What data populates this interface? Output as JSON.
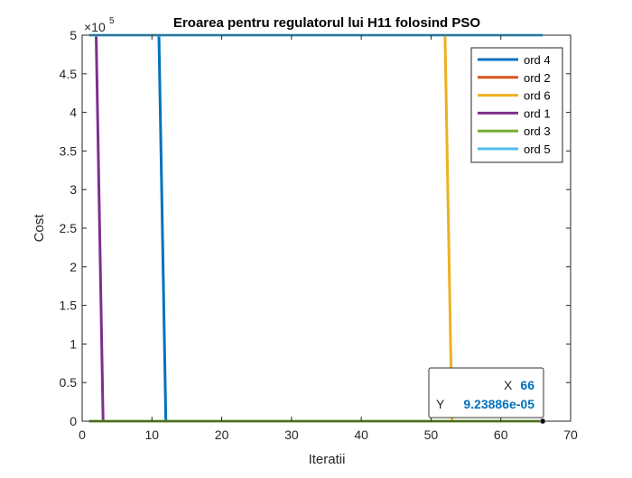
{
  "chart_data": {
    "type": "line",
    "title": "Eroarea pentru regulatorul lui H11 folosind PSO",
    "xlabel": "Iteratii",
    "ylabel": "Cost",
    "xlim": [
      0,
      70
    ],
    "ylim": [
      0,
      500000
    ],
    "xticks": [
      0,
      10,
      20,
      30,
      40,
      50,
      60,
      70
    ],
    "xtick_labels": [
      "0",
      "10",
      "20",
      "30",
      "40",
      "50",
      "60",
      "70"
    ],
    "yticks": [
      0,
      50000,
      100000,
      150000,
      200000,
      250000,
      300000,
      350000,
      400000,
      450000,
      500000
    ],
    "ytick_labels": [
      "0",
      "0.5",
      "1",
      "1.5",
      "2",
      "2.5",
      "3",
      "3.5",
      "4",
      "4.5",
      "5"
    ],
    "y_exponent": {
      "base": "×10",
      "power": "5"
    },
    "grid": false,
    "legend_position": "top-right",
    "series": [
      {
        "name": "ord 4",
        "color": "#0072BD",
        "x": [
          11,
          12,
          66
        ],
        "y": [
          500000,
          0,
          0
        ]
      },
      {
        "name": "ord 2",
        "color": "#D95319",
        "x": [
          1,
          66
        ],
        "y": [
          0,
          0
        ]
      },
      {
        "name": "ord 6",
        "color": "#EDB120",
        "x": [
          52,
          53,
          66
        ],
        "y": [
          500000,
          0,
          0
        ]
      },
      {
        "name": "ord 1",
        "color": "#7E2F8E",
        "x": [
          2,
          3,
          66
        ],
        "y": [
          500000,
          0,
          0
        ]
      },
      {
        "name": "ord 3",
        "color": "#77AC30",
        "x": [
          1,
          66
        ],
        "y": [
          0,
          0
        ]
      },
      {
        "name": "ord 5",
        "color": "#4DBEEE",
        "x": [
          1,
          66
        ],
        "y": [
          500000,
          500000
        ]
      }
    ],
    "datatip": {
      "x_label": "X",
      "x_value": "66",
      "y_label": "Y",
      "y_value": "9.23886e-05",
      "point": [
        66,
        0
      ],
      "value_color": "#0072BD"
    }
  }
}
